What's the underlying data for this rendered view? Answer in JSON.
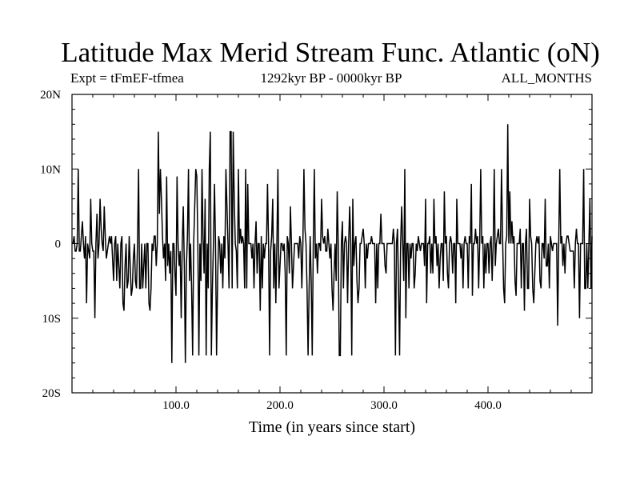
{
  "chart_data": {
    "type": "line",
    "title": "Latitude Max Merid Stream Func. Atlantic (oN)",
    "subtitle_left": "Expt = tFmEF-tfmea",
    "subtitle_center": "1292kyr BP - 0000kyr BP",
    "subtitle_right": "ALL_MONTHS",
    "xlabel": "Time (in years since start)",
    "ylabel": "",
    "xlim": [
      0,
      500
    ],
    "ylim": [
      -20,
      20
    ],
    "x_ticks": [
      {
        "value": 100,
        "label": "100.0"
      },
      {
        "value": 200,
        "label": "200.0"
      },
      {
        "value": 300,
        "label": "300.0"
      },
      {
        "value": 400,
        "label": "400.0"
      }
    ],
    "y_ticks": [
      {
        "value": 20,
        "label": "20N"
      },
      {
        "value": 10,
        "label": "10N"
      },
      {
        "value": 0,
        "label": "0"
      },
      {
        "value": -10,
        "label": "10S"
      },
      {
        "value": -20,
        "label": "20S"
      }
    ],
    "series": [
      {
        "name": "latitude_max_stream_function",
        "color": "#000000",
        "x_start": 1,
        "x_step": 1,
        "values": [
          0,
          1,
          -1,
          -1,
          0,
          10,
          -1,
          -1,
          1,
          3,
          0,
          -2,
          1,
          -8,
          0,
          -1,
          -2,
          6,
          0,
          -1,
          -1,
          -10,
          0,
          4,
          -2,
          0,
          6,
          2,
          0,
          -1,
          5,
          1,
          -2,
          -1,
          0,
          1,
          0,
          1,
          -2,
          -5,
          0,
          1,
          -5,
          0,
          -3,
          -6,
          0,
          1,
          -8,
          -9,
          -3,
          0,
          -6,
          -5,
          1,
          -3,
          -7,
          -6,
          -2,
          0,
          -5,
          -6,
          0,
          10,
          -6,
          -6,
          0,
          -6,
          -3,
          0,
          -6,
          0,
          0,
          -8,
          -9,
          -6,
          0,
          -1,
          1,
          1,
          -3,
          0,
          15,
          4,
          10,
          6,
          1,
          -2,
          0,
          -5,
          9,
          -3,
          0,
          -4,
          -1,
          -16,
          0,
          0,
          -4,
          -7,
          9,
          0,
          -3,
          -1,
          -10,
          0,
          5,
          -3,
          -16,
          -3,
          1,
          10,
          -5,
          0,
          -6,
          -15,
          0,
          5,
          10,
          9,
          0,
          -15,
          0,
          -5,
          10,
          1,
          -4,
          6,
          -15,
          0,
          -6,
          10,
          15,
          -15,
          -6,
          0,
          8,
          0,
          -15,
          -5,
          1,
          0,
          -4,
          0,
          -6,
          1,
          -2,
          10,
          5,
          0,
          -6,
          15,
          15,
          -6,
          15,
          6,
          0,
          -1,
          -6,
          10,
          0,
          2,
          0,
          1,
          0,
          -6,
          10,
          -6,
          8,
          0,
          0,
          0,
          -2,
          0,
          -6,
          0,
          3,
          -4,
          0,
          0,
          -9,
          1,
          -6,
          0,
          -2,
          0,
          0,
          8,
          0,
          -15,
          -1,
          1,
          6,
          -6,
          0,
          -8,
          0,
          10,
          -6,
          -3,
          0,
          0,
          -1,
          0,
          -4,
          -15,
          1,
          0,
          -4,
          5,
          0,
          -6,
          -3,
          0,
          0,
          0,
          0,
          -2,
          1,
          0,
          -6,
          0,
          10,
          2,
          0,
          -6,
          -15,
          -6,
          1,
          -5,
          -15,
          0,
          10,
          -2,
          0,
          -4,
          0,
          0,
          -1,
          6,
          1,
          0,
          1,
          -1,
          -1,
          2,
          0,
          -2,
          0,
          -6,
          -9,
          -4,
          0,
          -5,
          7,
          0,
          -15,
          -15,
          0,
          3,
          -6,
          0,
          1,
          0,
          -8,
          0,
          5,
          0,
          -15,
          6,
          -3,
          0,
          1,
          -5,
          -8,
          -6,
          0,
          0,
          1,
          2,
          0,
          -6,
          0,
          -2,
          0,
          0,
          0,
          1,
          0,
          0,
          0,
          -8,
          0,
          -6,
          0,
          0,
          4,
          0,
          0,
          0,
          -3,
          -4,
          0,
          0,
          0,
          0,
          0,
          0,
          2,
          0,
          -15,
          0,
          2,
          -6,
          -15,
          0,
          5,
          0,
          -5,
          10,
          -10,
          0,
          0,
          -6,
          0,
          -2,
          0,
          0,
          -6,
          -4,
          0,
          -1,
          1,
          0,
          -1,
          0,
          0,
          0,
          -3,
          6,
          -8,
          0,
          0,
          1,
          -4,
          0,
          -4,
          6,
          0,
          1,
          -3,
          0,
          -6,
          -2,
          0,
          0,
          -5,
          7,
          0,
          1,
          -4,
          -6,
          0,
          1,
          0,
          -4,
          0,
          0,
          -8,
          6,
          0,
          0,
          0,
          -2,
          0,
          -6,
          0,
          1,
          0,
          0,
          -6,
          1,
          0,
          8,
          -7,
          0,
          0,
          2,
          0,
          1,
          -6,
          0,
          10,
          0,
          1,
          -6,
          0,
          -4,
          0,
          0,
          -4,
          0,
          1,
          -5,
          0,
          10,
          -3,
          0,
          1,
          2,
          0,
          0,
          10,
          1,
          -6,
          -8,
          0,
          1,
          16,
          0,
          7,
          0,
          3,
          0,
          1,
          -5,
          -7,
          0,
          0,
          0,
          2,
          -6,
          0,
          0,
          -9,
          0,
          2,
          -6,
          -6,
          6,
          1,
          0,
          -6,
          -8,
          -4,
          0,
          1,
          0,
          1,
          -5,
          -6,
          0,
          0,
          -2,
          6,
          -3,
          -3,
          0,
          -6,
          1,
          0,
          -1,
          0,
          0,
          0,
          0,
          -11,
          0,
          10,
          0,
          1,
          -3,
          0,
          -4,
          0,
          1,
          1,
          0,
          -1,
          -1,
          -1,
          -1,
          -6,
          0,
          2,
          0,
          0,
          -10,
          0,
          0,
          0,
          10,
          -6,
          -6,
          0,
          -6,
          0,
          6,
          -6,
          1
        ]
      }
    ]
  }
}
